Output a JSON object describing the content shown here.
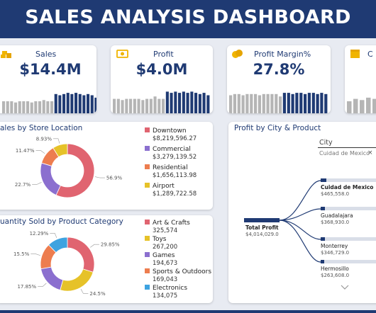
{
  "header": {
    "title": "SALES ANALYSIS DASHBOARD"
  },
  "colors": {
    "navy": "#1f3a73",
    "bar_gray": "#b5b5b5",
    "red": "#e06470",
    "purple": "#8b6fcf",
    "orange": "#ed7d4f",
    "yellow": "#e6c229",
    "blue": "#3ea3e0"
  },
  "kpis": [
    {
      "title": "Sales",
      "value": "$14.4M",
      "icon": "coins-icon"
    },
    {
      "title": "Profit",
      "value": "$4.0M",
      "icon": "cash-icon"
    },
    {
      "title": "Profit Margin%",
      "value": "27.8%",
      "icon": "coins-icon"
    },
    {
      "title": "C",
      "value": "",
      "icon": "box-icon"
    }
  ],
  "sparks": {
    "sales": [
      0.5,
      0.5,
      0.5,
      0.45,
      0.5,
      0.5,
      0.5,
      0.45,
      0.5,
      0.5,
      0.55,
      0.5,
      0.5,
      0.8,
      0.75,
      0.8,
      0.85,
      0.8,
      0.85,
      0.8,
      0.75,
      0.8,
      0.75,
      0.65
    ],
    "profit": [
      0.6,
      0.6,
      0.55,
      0.6,
      0.6,
      0.6,
      0.6,
      0.55,
      0.6,
      0.6,
      0.7,
      0.6,
      0.6,
      0.9,
      0.85,
      0.9,
      0.85,
      0.9,
      0.85,
      0.9,
      0.85,
      0.8,
      0.85,
      0.75
    ],
    "margin": [
      0.75,
      0.8,
      0.8,
      0.75,
      0.8,
      0.8,
      0.8,
      0.75,
      0.8,
      0.8,
      0.8,
      0.8,
      0.7,
      0.85,
      0.85,
      0.8,
      0.85,
      0.85,
      0.8,
      0.85,
      0.85,
      0.8,
      0.85,
      0.8
    ],
    "fourth": [
      0.5,
      0.6,
      0.55,
      0.65,
      0.6,
      0.7
    ]
  },
  "sales_location": {
    "title": "ales by Store Location",
    "slices": [
      {
        "name": "Downtown",
        "value": "$8,219,596.27",
        "pct": 56.9,
        "label": "56.9%",
        "color": "#e06470"
      },
      {
        "name": "Commercial",
        "value": "$3,279,139.52",
        "pct": 22.7,
        "label": "22.7%",
        "color": "#8b6fcf"
      },
      {
        "name": "Residential",
        "value": "$1,656,113.98",
        "pct": 11.47,
        "label": "11.47%",
        "color": "#ed7d4f"
      },
      {
        "name": "Airport",
        "value": "$1,289,722.58",
        "pct": 8.93,
        "label": "8.93%",
        "color": "#e6c229"
      }
    ]
  },
  "quantity_category": {
    "title": "uantity Sold by Product Category",
    "slices": [
      {
        "name": "Art & Crafts",
        "value": "325,574",
        "pct": 29.85,
        "label": "29.85%",
        "color": "#e06470"
      },
      {
        "name": "Toys",
        "value": "267,200",
        "pct": 24.5,
        "label": "24.5%",
        "color": "#e6c229"
      },
      {
        "name": "Games",
        "value": "194,673",
        "pct": 17.85,
        "label": "17.85%",
        "color": "#8b6fcf"
      },
      {
        "name": "Sports & Outdoors",
        "value": "169,043",
        "pct": 15.5,
        "label": "15.5%",
        "color": "#ed7d4f"
      },
      {
        "name": "Electronics",
        "value": "134,075",
        "pct": 12.29,
        "label": "12.29%",
        "color": "#3ea3e0"
      }
    ]
  },
  "profit_city": {
    "title": "Profit by City & Product",
    "filter_label": "City",
    "filter_value": "Cuidad de Mexico",
    "close_symbol": "×",
    "root": {
      "label": "Total Profit",
      "value": "$4,014,029.0"
    },
    "cities": [
      {
        "label": "Cuidad de Mexico",
        "value": "$465,558.0"
      },
      {
        "label": "Guadalajara",
        "value": "$368,930.0"
      },
      {
        "label": "Monterrey",
        "value": "$346,729.0"
      },
      {
        "label": "Hermosillo",
        "value": "$263,608.0"
      }
    ]
  }
}
